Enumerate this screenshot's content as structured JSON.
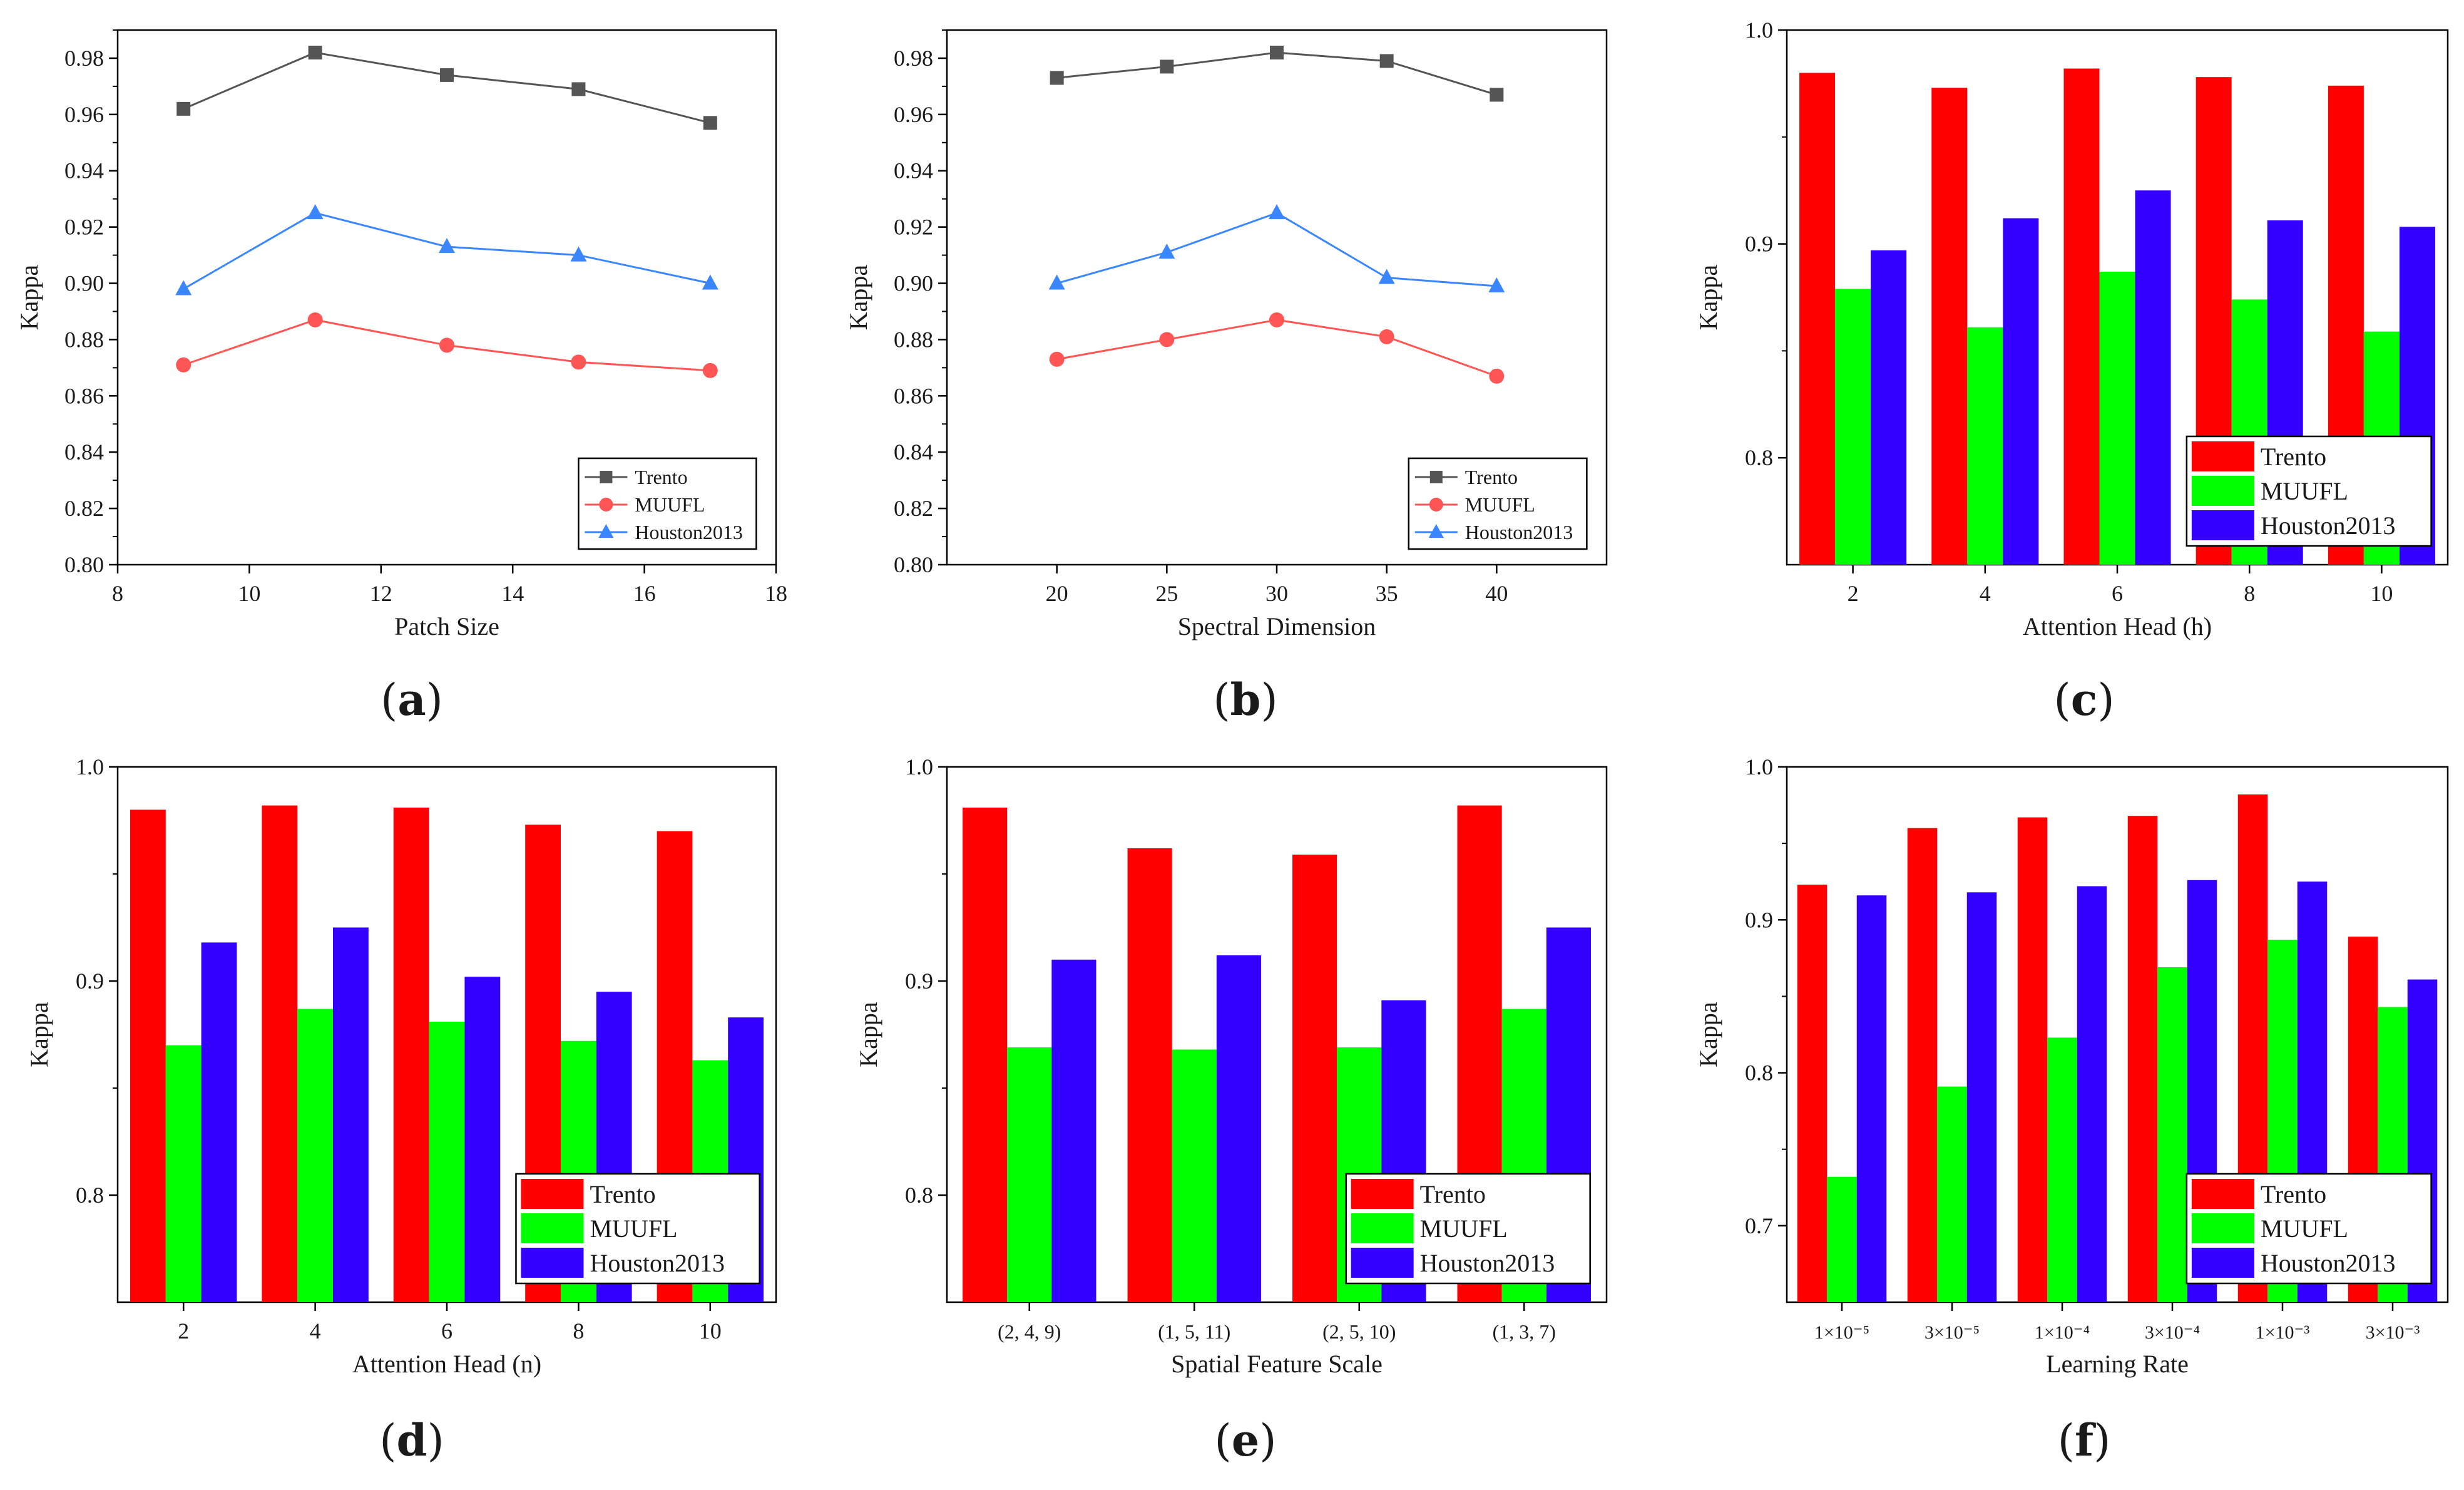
{
  "colors": {
    "trento": "#ff0000",
    "muufl": "#00ff00",
    "houston": "#3300ff",
    "trento_line": "#555555",
    "muufl_line": "#ff5555",
    "houston_line": "#3a86ff",
    "axis": "#000000"
  },
  "chart_data": [
    {
      "type": "line",
      "panel_label": "a",
      "xlabel": "Patch Size",
      "ylabel": "Kappa",
      "xlim": [
        8,
        18
      ],
      "ylim": [
        0.8,
        0.99
      ],
      "xticks": [
        "8",
        "10",
        "12",
        "14",
        "16",
        "18"
      ],
      "yticks": [
        "0.80",
        "0.82",
        "0.84",
        "0.86",
        "0.88",
        "0.90",
        "0.92",
        "0.94",
        "0.96",
        "0.98"
      ],
      "legend_position": "bottom-right",
      "x": [
        9,
        11,
        13,
        15,
        17
      ],
      "series": [
        {
          "name": "Trento",
          "marker": "square",
          "values": [
            0.962,
            0.982,
            0.974,
            0.969,
            0.957
          ]
        },
        {
          "name": "MUUFL",
          "marker": "circle",
          "values": [
            0.871,
            0.887,
            0.878,
            0.872,
            0.869
          ]
        },
        {
          "name": "Houston2013",
          "marker": "triangle",
          "values": [
            0.898,
            0.925,
            0.913,
            0.91,
            0.9
          ]
        }
      ]
    },
    {
      "type": "line",
      "panel_label": "b",
      "xlabel": "Spectral Dimension",
      "ylabel": "Kappa",
      "xlim": [
        15,
        45
      ],
      "ylim": [
        0.8,
        0.99
      ],
      "xticks": [
        "20",
        "25",
        "30",
        "35",
        "40"
      ],
      "yticks": [
        "0.80",
        "0.82",
        "0.84",
        "0.86",
        "0.88",
        "0.90",
        "0.92",
        "0.94",
        "0.96",
        "0.98"
      ],
      "legend_position": "bottom-right",
      "x": [
        20,
        25,
        30,
        35,
        40
      ],
      "series": [
        {
          "name": "Trento",
          "marker": "square",
          "values": [
            0.973,
            0.977,
            0.982,
            0.979,
            0.967
          ]
        },
        {
          "name": "MUUFL",
          "marker": "circle",
          "values": [
            0.873,
            0.88,
            0.887,
            0.881,
            0.867
          ]
        },
        {
          "name": "Houston2013",
          "marker": "triangle",
          "values": [
            0.9,
            0.911,
            0.925,
            0.902,
            0.899
          ]
        }
      ]
    },
    {
      "type": "bar",
      "panel_label": "c",
      "xlabel": "Attention Head (h)",
      "ylabel": "Kappa",
      "ylim": [
        0.75,
        1.0
      ],
      "yticks": [
        "0.8",
        "0.9",
        "1.0"
      ],
      "legend_position": "bottom-right",
      "categories": [
        "2",
        "4",
        "6",
        "8",
        "10"
      ],
      "series": [
        {
          "name": "Trento",
          "values": [
            0.98,
            0.973,
            0.982,
            0.978,
            0.974
          ]
        },
        {
          "name": "MUUFL",
          "values": [
            0.879,
            0.861,
            0.887,
            0.874,
            0.859
          ]
        },
        {
          "name": "Houston2013",
          "values": [
            0.897,
            0.912,
            0.925,
            0.911,
            0.908
          ]
        }
      ]
    },
    {
      "type": "bar",
      "panel_label": "d",
      "xlabel": "Attention Head (n)",
      "ylabel": "Kappa",
      "ylim": [
        0.75,
        1.0
      ],
      "yticks": [
        "0.8",
        "0.9",
        "1.0"
      ],
      "legend_position": "bottom-right",
      "categories": [
        "2",
        "4",
        "6",
        "8",
        "10"
      ],
      "series": [
        {
          "name": "Trento",
          "values": [
            0.98,
            0.982,
            0.981,
            0.973,
            0.97
          ]
        },
        {
          "name": "MUUFL",
          "values": [
            0.87,
            0.887,
            0.881,
            0.872,
            0.863
          ]
        },
        {
          "name": "Houston2013",
          "values": [
            0.918,
            0.925,
            0.902,
            0.895,
            0.883
          ]
        }
      ]
    },
    {
      "type": "bar",
      "panel_label": "e",
      "xlabel": "Spatial Feature Scale",
      "ylabel": "Kappa",
      "ylim": [
        0.75,
        1.0
      ],
      "yticks": [
        "0.8",
        "0.9",
        "1.0"
      ],
      "legend_position": "bottom-right",
      "categories": [
        "(2, 4, 9)",
        "(1, 5, 11)",
        "(2, 5, 10)",
        "(1, 3, 7)"
      ],
      "series": [
        {
          "name": "Trento",
          "values": [
            0.981,
            0.962,
            0.959,
            0.982
          ]
        },
        {
          "name": "MUUFL",
          "values": [
            0.869,
            0.868,
            0.869,
            0.887
          ]
        },
        {
          "name": "Houston2013",
          "values": [
            0.91,
            0.912,
            0.891,
            0.925
          ]
        }
      ]
    },
    {
      "type": "bar",
      "panel_label": "f",
      "xlabel": "Learning Rate",
      "ylabel": "Kappa",
      "ylim": [
        0.65,
        1.0
      ],
      "yticks": [
        "0.7",
        "0.8",
        "0.9",
        "1.0"
      ],
      "legend_position": "bottom-right",
      "categories": [
        "1×10⁻⁵",
        "3×10⁻⁵",
        "1×10⁻⁴",
        "3×10⁻⁴",
        "1×10⁻³",
        "3×10⁻³"
      ],
      "series": [
        {
          "name": "Trento",
          "values": [
            0.923,
            0.96,
            0.967,
            0.968,
            0.982,
            0.889
          ]
        },
        {
          "name": "MUUFL",
          "values": [
            0.732,
            0.791,
            0.823,
            0.869,
            0.887,
            0.843
          ]
        },
        {
          "name": "Houston2013",
          "values": [
            0.916,
            0.918,
            0.922,
            0.926,
            0.925,
            0.861
          ]
        }
      ]
    }
  ]
}
